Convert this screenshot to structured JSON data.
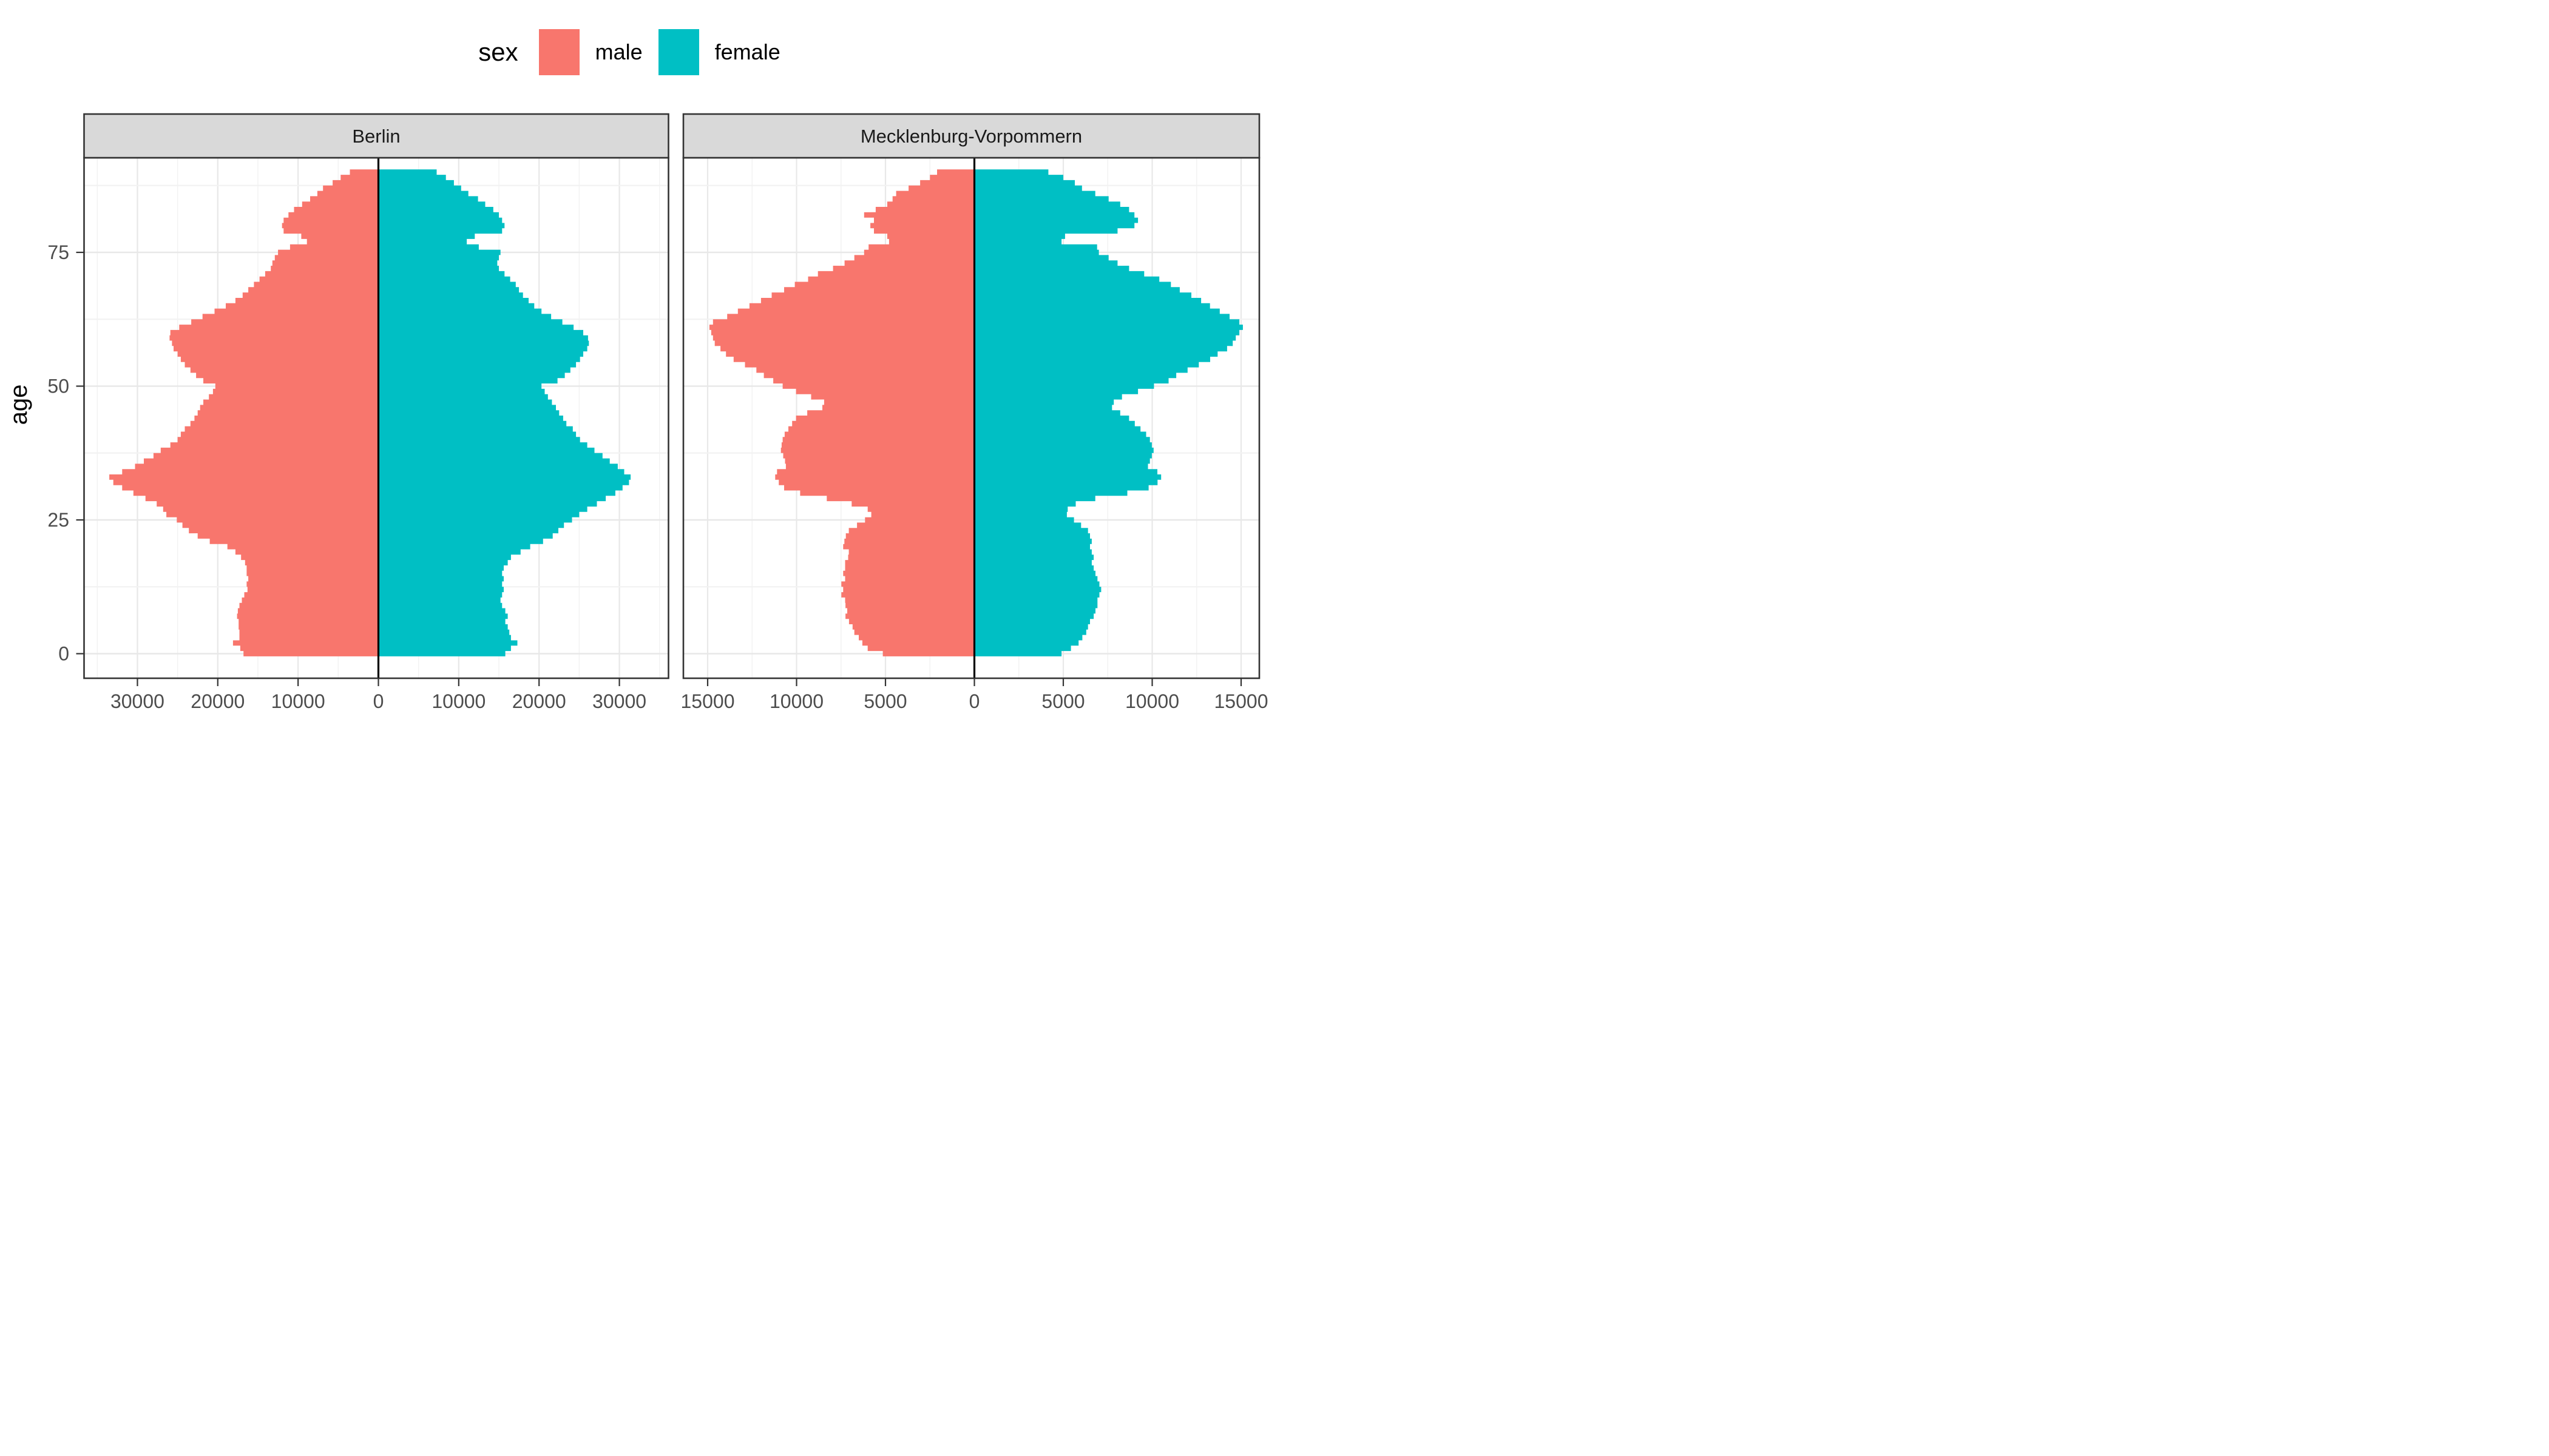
{
  "legend": {
    "title": "sex",
    "items": [
      {
        "label": "male",
        "color": "#F8766D"
      },
      {
        "label": "female",
        "color": "#00BFC4"
      }
    ]
  },
  "y_axis": {
    "title": "age",
    "ticks": [
      0,
      25,
      50,
      75
    ],
    "tick_labels": [
      "0",
      "25",
      "50",
      "75"
    ]
  },
  "chart_data": {
    "type": "bar",
    "subtype": "population-pyramid",
    "age_min": 0,
    "age_max": 90,
    "ylabel": "age",
    "colors": {
      "male": "#F8766D",
      "female": "#00BFC4"
    },
    "facets": [
      {
        "label": "Berlin",
        "x_ticks": [
          -30000,
          -20000,
          -10000,
          0,
          10000,
          20000,
          30000
        ],
        "x_tick_labels": [
          "30000",
          "20000",
          "10000",
          "0",
          "10000",
          "20000",
          "30000"
        ],
        "xlim": [
          -36500,
          36000
        ],
        "male": [
          16800,
          17200,
          18100,
          17300,
          17300,
          17400,
          17400,
          17600,
          17500,
          17300,
          17000,
          16700,
          16300,
          16400,
          16200,
          16400,
          16400,
          16600,
          17100,
          17800,
          18800,
          21000,
          22500,
          23600,
          24400,
          25100,
          26400,
          26800,
          27600,
          29000,
          30500,
          31900,
          33000,
          33500,
          31900,
          30300,
          29200,
          28000,
          27100,
          25900,
          25000,
          24600,
          24100,
          23400,
          22900,
          22500,
          22200,
          21800,
          21100,
          20600,
          20300,
          21800,
          22700,
          23400,
          24100,
          24600,
          25000,
          25500,
          25700,
          26000,
          25900,
          24800,
          23300,
          21900,
          20400,
          19000,
          17800,
          16900,
          16200,
          15500,
          14800,
          14100,
          13400,
          13200,
          12900,
          12500,
          11000,
          8900,
          9600,
          11800,
          12000,
          11800,
          11200,
          10500,
          9500,
          8500,
          7600,
          6900,
          5700,
          4700,
          3550
        ],
        "female": [
          15800,
          16500,
          17300,
          16500,
          16300,
          16100,
          15800,
          16100,
          15800,
          15400,
          15200,
          15400,
          15600,
          15400,
          15600,
          15400,
          15600,
          16100,
          16500,
          17700,
          18900,
          20500,
          21700,
          22400,
          23100,
          24100,
          25000,
          26000,
          27200,
          28300,
          29500,
          30400,
          31200,
          31400,
          30600,
          29800,
          28800,
          27900,
          26900,
          26000,
          25100,
          24600,
          24200,
          23400,
          23000,
          22500,
          22100,
          21600,
          21100,
          20700,
          20300,
          22300,
          23200,
          23900,
          24600,
          25100,
          25500,
          26000,
          26200,
          26100,
          25500,
          24300,
          22900,
          21500,
          20300,
          19400,
          18700,
          18000,
          17500,
          17100,
          16400,
          15700,
          15000,
          14800,
          15000,
          15200,
          12500,
          11000,
          12000,
          15400,
          15700,
          15400,
          15000,
          14300,
          13300,
          12400,
          11200,
          10300,
          9400,
          8400,
          7250
        ]
      },
      {
        "label": "Mecklenburg-Vorpommern",
        "x_ticks": [
          -15000,
          -10000,
          -5000,
          0,
          5000,
          10000,
          15000
        ],
        "x_tick_labels": [
          "15000",
          "10000",
          "5000",
          "0",
          "5000",
          "10000",
          "15000"
        ],
        "xlim": [
          -16400,
          16000
        ],
        "male": [
          5150,
          6000,
          6300,
          6500,
          6750,
          6850,
          7050,
          7250,
          7150,
          7250,
          7270,
          7480,
          7380,
          7480,
          7270,
          7380,
          7270,
          7270,
          7100,
          7060,
          7380,
          7310,
          7230,
          7060,
          6600,
          6150,
          5800,
          6000,
          6900,
          8300,
          9800,
          10700,
          11000,
          11200,
          11100,
          10600,
          10650,
          10750,
          10880,
          10840,
          10780,
          10670,
          10460,
          10250,
          10030,
          9400,
          8550,
          8450,
          9180,
          10030,
          10780,
          11310,
          11840,
          12260,
          12900,
          13540,
          13970,
          14280,
          14600,
          14700,
          14800,
          14900,
          14700,
          13900,
          13300,
          12650,
          12000,
          11400,
          10700,
          10100,
          9350,
          8800,
          7950,
          7300,
          6750,
          6200,
          5950,
          4800,
          4900,
          5650,
          5850,
          5650,
          6200,
          5550,
          4900,
          4600,
          4400,
          3700,
          3050,
          2500,
          2100
        ],
        "female": [
          4900,
          5430,
          5860,
          6070,
          6290,
          6390,
          6500,
          6710,
          6810,
          6920,
          6920,
          7030,
          7130,
          7030,
          6920,
          6810,
          6710,
          6600,
          6710,
          6600,
          6500,
          6600,
          6500,
          6390,
          6000,
          5600,
          5200,
          5250,
          5700,
          6800,
          8600,
          9800,
          10300,
          10500,
          10290,
          9760,
          9870,
          9980,
          10080,
          9980,
          9870,
          9660,
          9340,
          9020,
          8700,
          8200,
          7740,
          7840,
          8300,
          9200,
          10100,
          10920,
          11350,
          11990,
          12620,
          13260,
          13680,
          14210,
          14530,
          14700,
          14900,
          15100,
          14900,
          14350,
          13800,
          13250,
          12750,
          12200,
          11550,
          11050,
          10400,
          9550,
          8700,
          8050,
          7550,
          7000,
          6900,
          4900,
          5100,
          8050,
          9000,
          9200,
          9000,
          8700,
          8200,
          7550,
          6800,
          6050,
          5650,
          5000,
          4160
        ]
      }
    ],
    "style": {
      "strip_bg": "#D9D9D9",
      "strip_text": "#1A1A1A",
      "panel_border": "#333333",
      "grid_major": "#E8E8E8",
      "grid_minor": "#F2F2F2",
      "tick_text": "#4D4D4D",
      "zero_line": "#000000",
      "background": "#FFFFFF"
    }
  }
}
